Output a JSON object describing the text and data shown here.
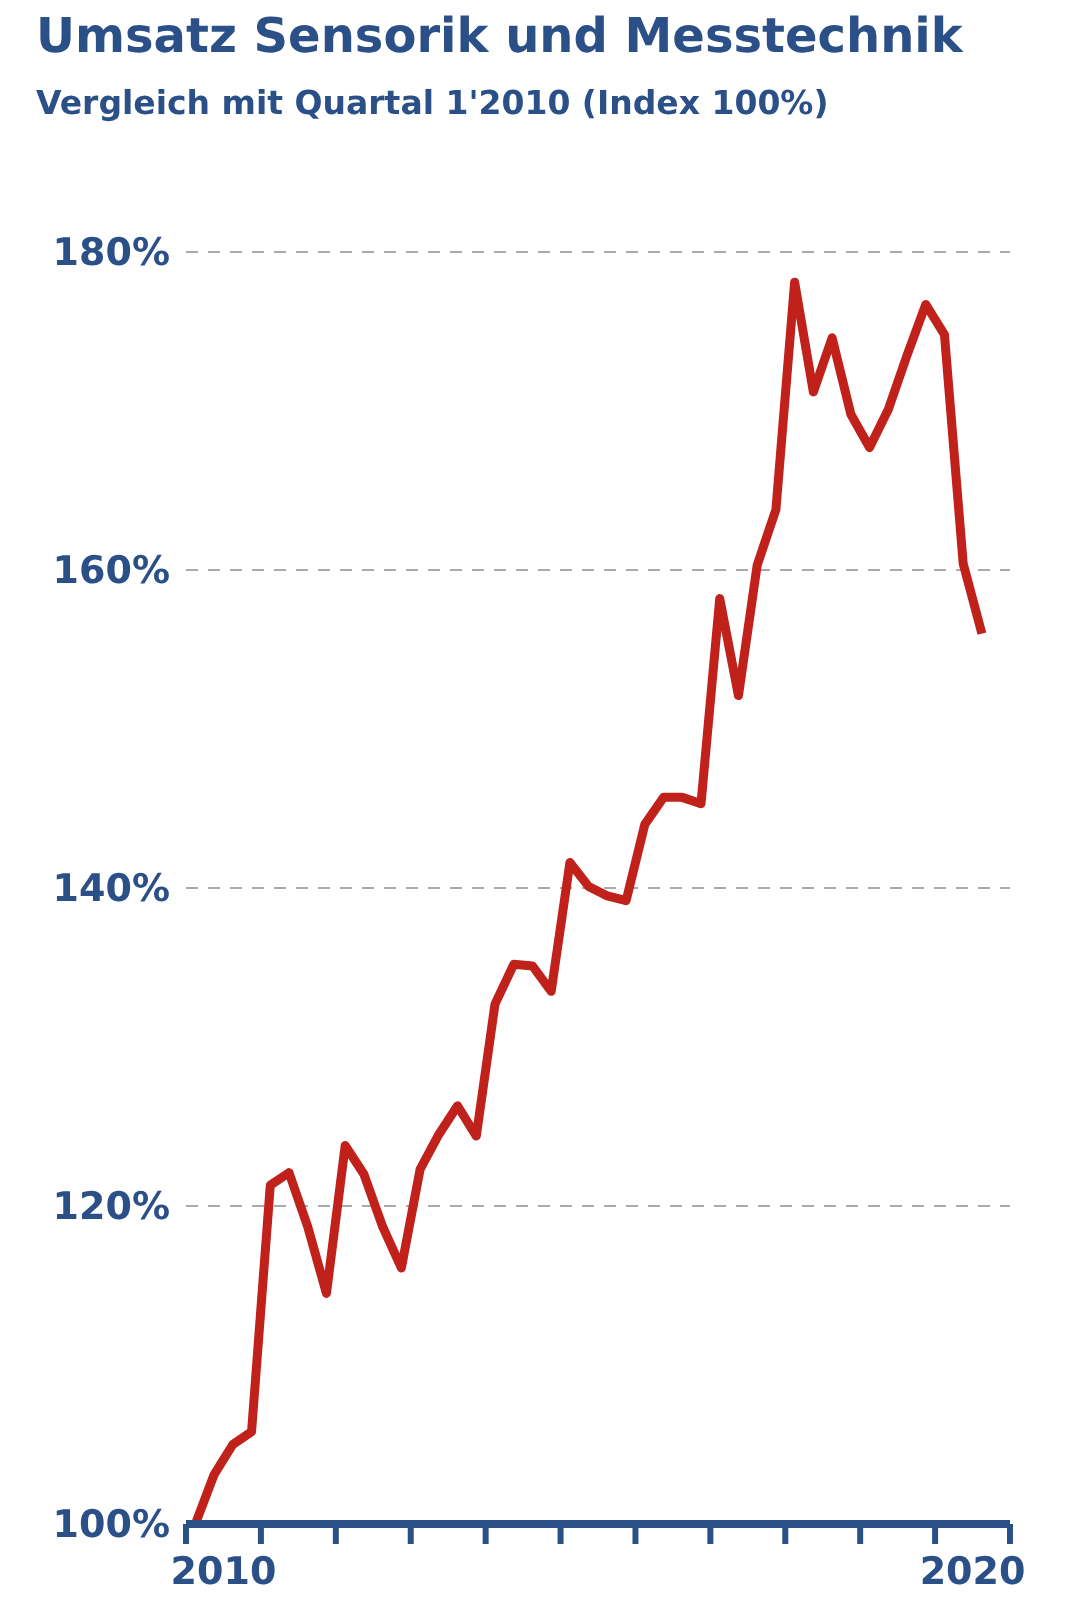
{
  "chart_data": {
    "type": "line",
    "title": "Umsatz Sensorik und Messtechnik",
    "subtitle": "Vergleich mit Quartal 1'2010 (Index 100%)",
    "x": [
      2010.125,
      2010.375,
      2010.625,
      2010.875,
      2011.125,
      2011.375,
      2011.625,
      2011.875,
      2012.125,
      2012.375,
      2012.625,
      2012.875,
      2013.125,
      2013.375,
      2013.625,
      2013.875,
      2014.125,
      2014.375,
      2014.625,
      2014.875,
      2015.125,
      2015.375,
      2015.625,
      2015.875,
      2016.125,
      2016.375,
      2016.625,
      2016.875,
      2017.125,
      2017.375,
      2017.625,
      2017.875,
      2018.125,
      2018.375,
      2018.625,
      2018.875,
      2019.125,
      2019.375,
      2019.625,
      2019.875,
      2020.125,
      2020.375,
      2020.625
    ],
    "series": [
      {
        "color": "#c0211a",
        "values": [
          100,
          103.1,
          105.0,
          105.8,
          121.3,
          122.1,
          118.7,
          114.5,
          123.8,
          122.0,
          118.7,
          116.1,
          122.3,
          124.5,
          126.3,
          124.4,
          132.7,
          135.2,
          135.1,
          133.5,
          141.6,
          140.1,
          139.5,
          139.2,
          144.0,
          145.7,
          145.7,
          145.3,
          158.2,
          152.1,
          160.3,
          163.8,
          178.1,
          171.2,
          174.6,
          169.8,
          167.7,
          170.1,
          173.5,
          176.7,
          174.8,
          160.4,
          156.0
        ]
      }
    ],
    "xlim": [
      2010,
      2021
    ],
    "xticks": [
      {
        "value": 2010,
        "label": null
      },
      {
        "value": 2010.5,
        "label": "2010"
      },
      {
        "value": 2011,
        "label": null
      },
      {
        "value": 2012,
        "label": null
      },
      {
        "value": 2013,
        "label": null
      },
      {
        "value": 2014,
        "label": null
      },
      {
        "value": 2015,
        "label": null
      },
      {
        "value": 2016,
        "label": null
      },
      {
        "value": 2017,
        "label": null
      },
      {
        "value": 2018,
        "label": null
      },
      {
        "value": 2019,
        "label": null
      },
      {
        "value": 2020,
        "label": null
      },
      {
        "value": 2020.5,
        "label": "2020"
      },
      {
        "value": 2021,
        "label": null
      }
    ],
    "ylim": [
      100,
      180
    ],
    "yticks": [
      {
        "value": 100,
        "label": "100%"
      },
      {
        "value": 120,
        "label": "120%"
      },
      {
        "value": 140,
        "label": "140%"
      },
      {
        "value": 160,
        "label": "160%"
      },
      {
        "value": 180,
        "label": "180%"
      }
    ],
    "grid": "y",
    "marker": "none",
    "line_style": "solid",
    "legend": false
  }
}
